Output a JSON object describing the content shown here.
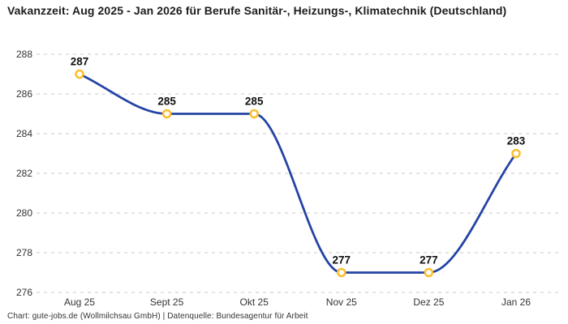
{
  "header": {
    "title": "Vakanzzeit: Aug 2025 - Jan 2026 für Berufe Sanitär-, Heizungs-, Klimatechnik (Deutschland)"
  },
  "footer": {
    "credit": "Chart: gute-jobs.de (Wollmilchsau GmbH) | Datenquelle: Bundesagentur für Arbeit"
  },
  "chart_data": {
    "type": "line",
    "title": "Vakanzzeit: Aug 2025 - Jan 2026 für Berufe Sanitär-, Heizungs-, Klimatechnik (Deutschland)",
    "categories": [
      "Aug 25",
      "Sept 25",
      "Okt 25",
      "Nov 25",
      "Dez 25",
      "Jan 26"
    ],
    "series": [
      {
        "name": "Vakanzzeit",
        "values": [
          287,
          285,
          285,
          277,
          277,
          283
        ]
      }
    ],
    "data_labels": [
      287,
      285,
      285,
      277,
      277,
      283
    ],
    "xlabel": "",
    "ylabel": "",
    "ylim": [
      276,
      288
    ],
    "yticks": [
      288,
      286,
      284,
      282,
      280,
      278,
      276
    ],
    "grid": "horizontal-dashed",
    "legend": "none",
    "curve": "monotone",
    "colors": {
      "line": "#2343a4",
      "marker_stroke": "#fcbe2d",
      "marker_fill": "#ffffff",
      "grid": "#c9c9c9",
      "tick_text": "#333333",
      "data_label_text": "#111111",
      "title_text": "#1d1d1d"
    }
  }
}
